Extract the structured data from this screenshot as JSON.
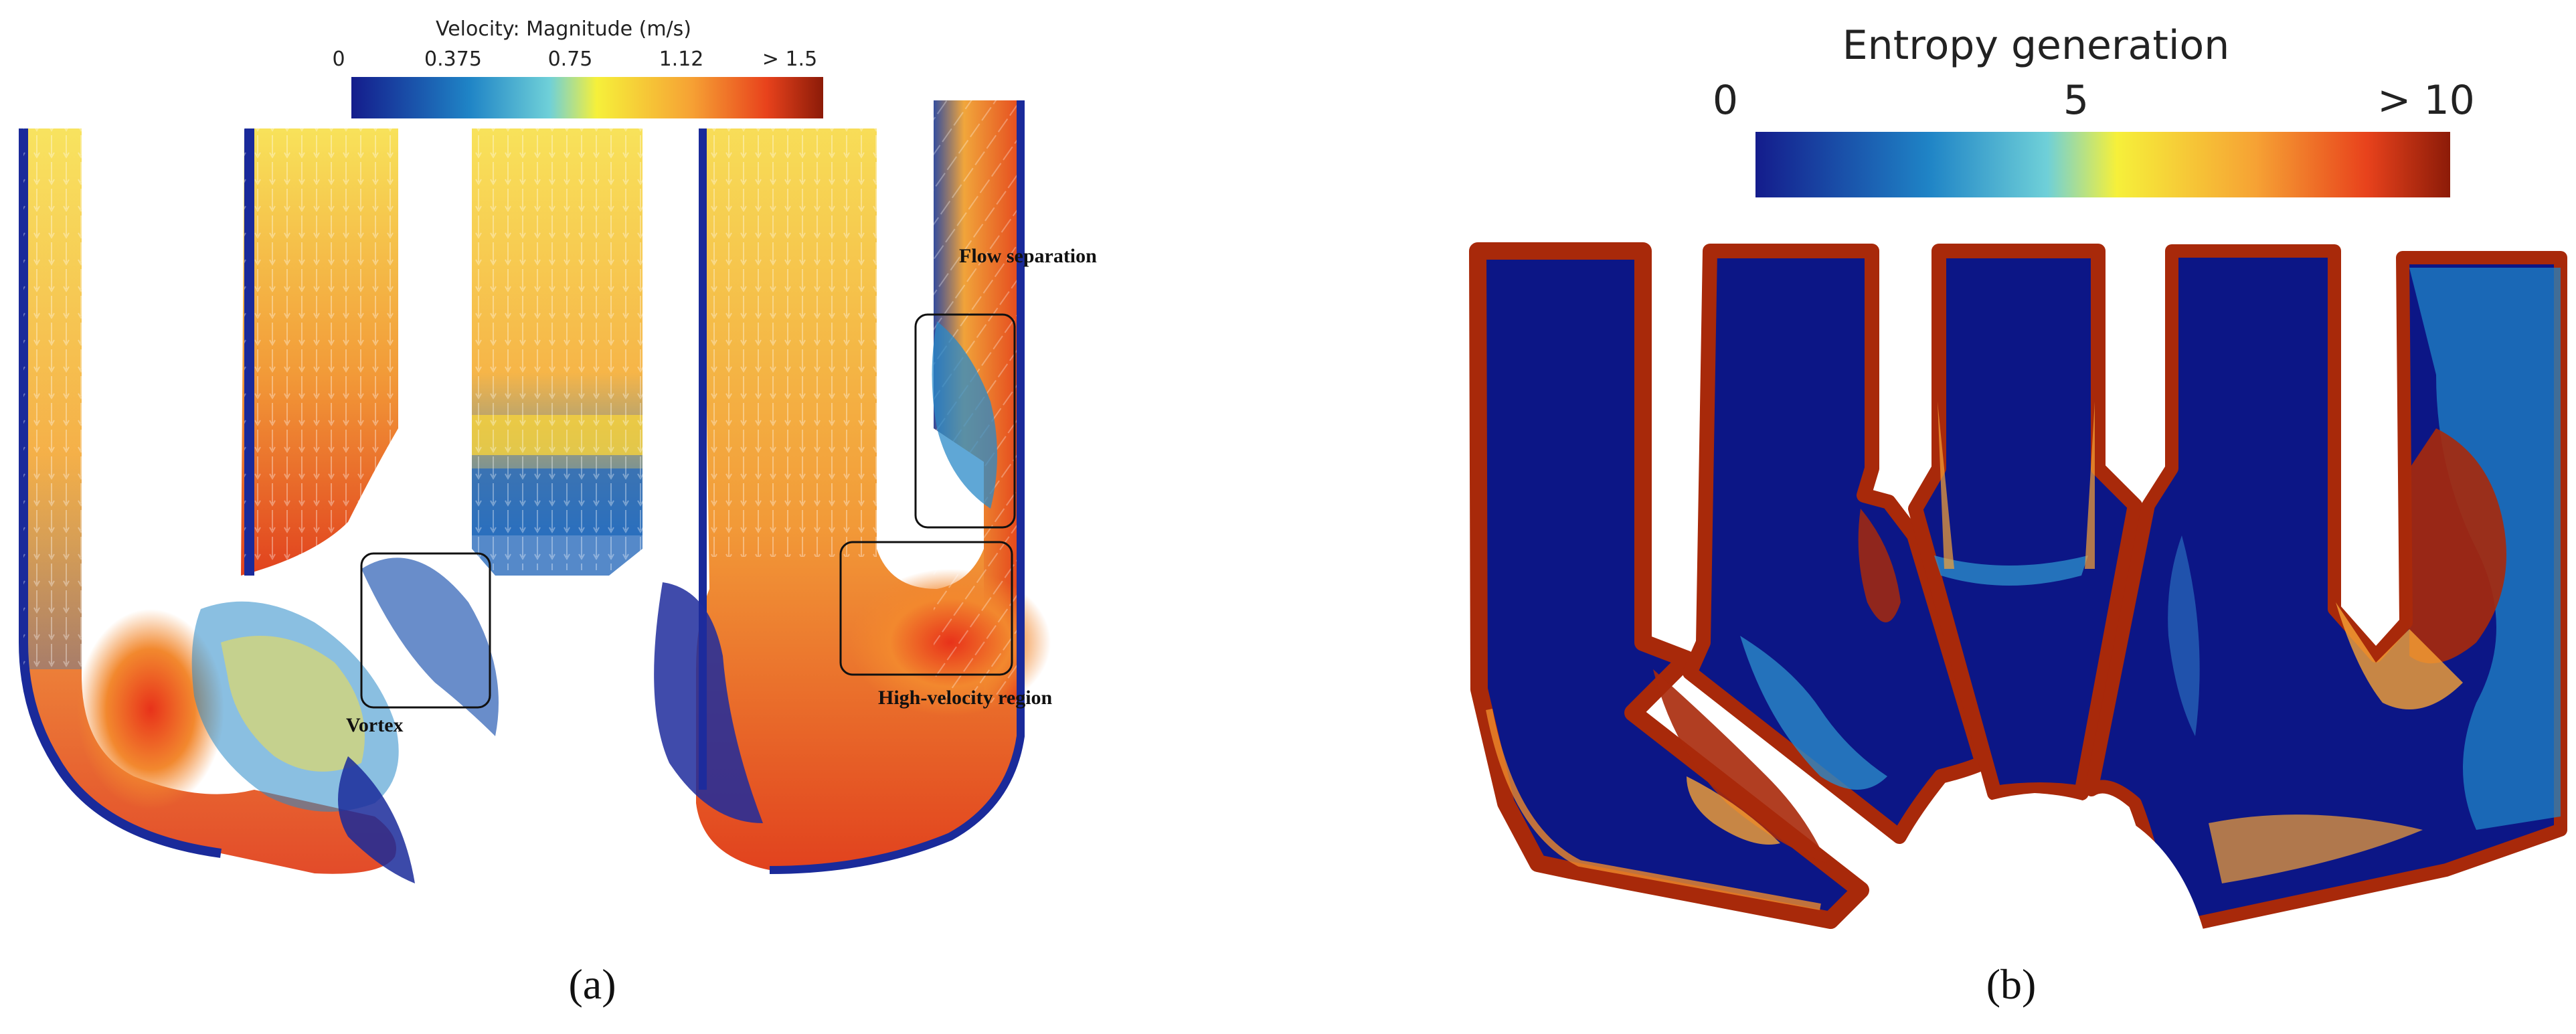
{
  "panel_a": {
    "caption": "(a)",
    "colorbar": {
      "title": "Velocity: Magnitude (m/s)",
      "ticks": [
        "0",
        "0.375",
        "0.75",
        "1.12",
        "> 1.5"
      ]
    },
    "annotations": {
      "flow_separation": "Flow separation",
      "high_velocity": "High-velocity region",
      "vortex": "Vortex"
    }
  },
  "panel_b": {
    "caption": "(b)",
    "colorbar": {
      "title": "Entropy generation",
      "ticks": [
        "0",
        "5",
        "> 10"
      ]
    }
  },
  "colors": {
    "low": "#141c8c",
    "mid_low": "#1f84c6",
    "mid": "#6fd0d8",
    "yellow": "#f6f03a",
    "orange": "#f6a234",
    "high": "#8c1b08"
  }
}
